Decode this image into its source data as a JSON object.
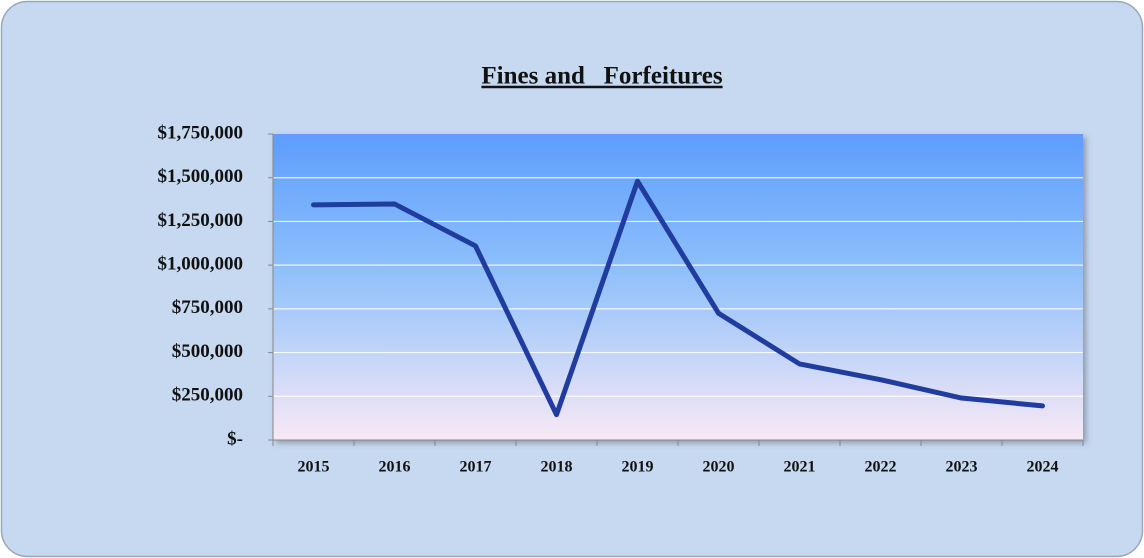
{
  "chart_data": {
    "type": "line",
    "title": "Fines and   Forfeitures",
    "categories": [
      "2015",
      "2016",
      "2017",
      "2018",
      "2019",
      "2020",
      "2021",
      "2022",
      "2023",
      "2024"
    ],
    "series": [
      {
        "name": "Fines and Forfeitures",
        "color": "#1f3c9e",
        "values": [
          1345000,
          1350000,
          1110000,
          145000,
          1480000,
          725000,
          435000,
          345000,
          240000,
          195000
        ]
      }
    ],
    "ylim": [
      0,
      1750000
    ],
    "yticks": [
      {
        "value": 0,
        "label": "$-"
      },
      {
        "value": 250000,
        "label": "$250,000"
      },
      {
        "value": 500000,
        "label": "$500,000"
      },
      {
        "value": 750000,
        "label": "$750,000"
      },
      {
        "value": 1000000,
        "label": "$1,000,000"
      },
      {
        "value": 1250000,
        "label": "$1,250,000"
      },
      {
        "value": 1500000,
        "label": "$1,500,000"
      },
      {
        "value": 1750000,
        "label": "$1,750,000"
      }
    ],
    "grid": true
  }
}
